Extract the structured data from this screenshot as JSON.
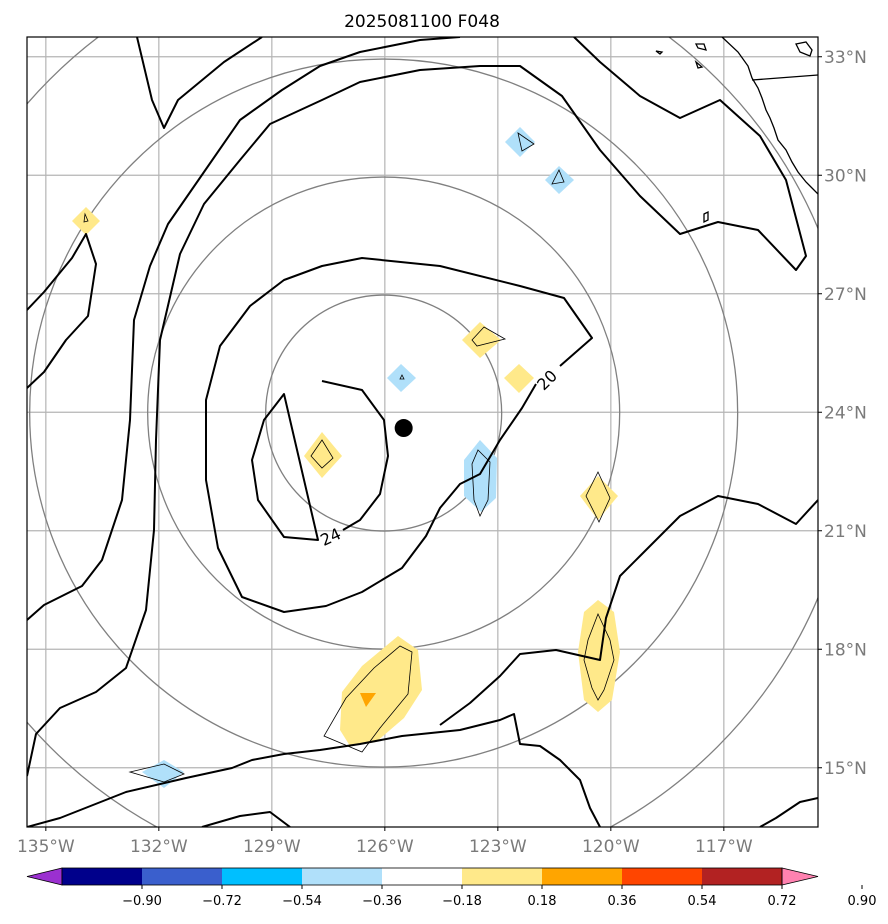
{
  "title": "2025081100 F048",
  "map": {
    "lon_range": [
      -135.5,
      -114.5
    ],
    "lat_range": [
      13.5,
      33.5
    ],
    "lon_ticks": [
      "135°W",
      "132°W",
      "129°W",
      "126°W",
      "123°W",
      "120°W",
      "117°W"
    ],
    "lat_ticks": [
      "33°N",
      "30°N",
      "27°N",
      "24°N",
      "21°N",
      "18°N",
      "15°N"
    ],
    "grid": true,
    "storm_center": {
      "lon": -125.5,
      "lat": 23.6
    },
    "range_rings": "concentric circles around storm center",
    "contour_labels": [
      "20",
      "24"
    ]
  },
  "colorbar": {
    "ticks": [
      "−0.90",
      "−0.72",
      "−0.54",
      "−0.36",
      "−0.18",
      "0.18",
      "0.36",
      "0.54",
      "0.72",
      "0.90"
    ],
    "colors": [
      "#9b30d0",
      "#00008b",
      "#3a5fcd",
      "#00bfff",
      "#b0e0fa",
      "#ffffff",
      "#ffe98a",
      "#ffa500",
      "#ff4500",
      "#b22222",
      "#ff82b0"
    ],
    "extend": "both"
  },
  "colors": {
    "grid": "#b4b4b4",
    "ring": "#808080",
    "contour": "#000000",
    "positive_fill": "#ffe98a",
    "positive_strong": "#ffa500",
    "negative_fill": "#b0e0fa"
  }
}
